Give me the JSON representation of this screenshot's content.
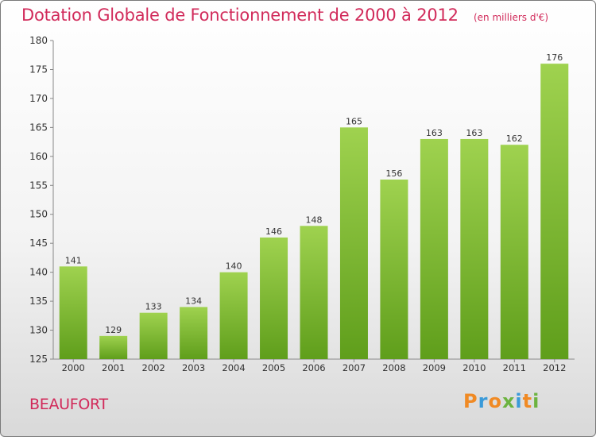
{
  "header": {
    "title": "Dotation Globale de Fonctionnement de 2000 à 2012",
    "unit": "(en milliers d'€)"
  },
  "commune": "BEAUFORT",
  "logo": {
    "text": "Proxiti",
    "letters": [
      "P",
      "r",
      "o",
      "x",
      "i",
      "t",
      "i"
    ],
    "colors": [
      "#f08a24",
      "#3a9ad9",
      "#f08a24",
      "#6cb33f",
      "#3a9ad9",
      "#f08a24",
      "#6cb33f"
    ]
  },
  "colors": {
    "bar_top": "#9fd24f",
    "bar_bottom": "#5f9e1b",
    "title": "#d12a5a"
  },
  "chart_data": {
    "type": "bar",
    "title": "Dotation Globale de Fonctionnement de 2000 à 2012",
    "xlabel": "",
    "ylabel": "",
    "categories": [
      "2000",
      "2001",
      "2002",
      "2003",
      "2004",
      "2005",
      "2006",
      "2007",
      "2008",
      "2009",
      "2010",
      "2011",
      "2012"
    ],
    "values": [
      141,
      129,
      133,
      134,
      140,
      146,
      148,
      165,
      156,
      163,
      163,
      162,
      176
    ],
    "ylim": [
      125,
      180
    ],
    "yticks": [
      125,
      130,
      135,
      140,
      145,
      150,
      155,
      160,
      165,
      170,
      175,
      180
    ],
    "grid": false,
    "data_labels": true
  }
}
